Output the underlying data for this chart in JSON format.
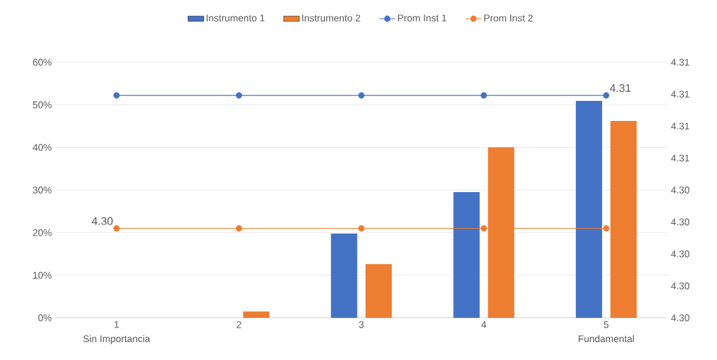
{
  "chart_data": {
    "type": "bar",
    "categories": [
      "1",
      "2",
      "3",
      "4",
      "5"
    ],
    "series": [
      {
        "name": "Instrumento 1",
        "color": "#4472c4",
        "values": [
          0,
          0,
          19.8,
          29.5,
          50.9
        ]
      },
      {
        "name": "Instrumento 2",
        "color": "#ed7d31",
        "values": [
          0,
          1.5,
          12.6,
          40,
          46.2
        ]
      },
      {
        "name": "Prom Inst 1",
        "type": "line",
        "axis": "y2",
        "marker": "circle",
        "color": "#4472c4",
        "values": [
          4.3087,
          4.3087,
          4.3087,
          4.3087,
          4.3087
        ],
        "value_labels": [
          null,
          null,
          null,
          null,
          "4.31"
        ]
      },
      {
        "name": "Prom Inst 2",
        "type": "line",
        "axis": "y2",
        "marker": "circle",
        "color": "#ed7d31",
        "values": [
          4.3035,
          4.3035,
          4.3035,
          4.3035,
          4.3035
        ],
        "value_labels": [
          "4.30",
          null,
          null,
          null,
          null
        ]
      }
    ],
    "ylim": [
      0,
      60
    ],
    "yticks": [
      {
        "value": 0,
        "label": "0%"
      },
      {
        "value": 10,
        "label": "10%"
      },
      {
        "value": 20,
        "label": "20%"
      },
      {
        "value": 30,
        "label": "30%"
      },
      {
        "value": 40,
        "label": "40%"
      },
      {
        "value": 50,
        "label": "50%"
      },
      {
        "value": 60,
        "label": "60%"
      }
    ],
    "y2lim": [
      4.3,
      4.31
    ],
    "y2ticks": [
      {
        "value": 4.3,
        "label": "4.30"
      },
      {
        "value": 4.30125,
        "label": "4.30"
      },
      {
        "value": 4.3025,
        "label": "4.30"
      },
      {
        "value": 4.30375,
        "label": "4.30"
      },
      {
        "value": 4.305,
        "label": "4.30"
      },
      {
        "value": 4.30625,
        "label": "4.31"
      },
      {
        "value": 4.3075,
        "label": "4.31"
      },
      {
        "value": 4.30875,
        "label": "4.31"
      },
      {
        "value": 4.31,
        "label": "4.31"
      }
    ],
    "grid": "y",
    "legend": "top",
    "annotations": [
      "Sin Importancia",
      "Fundamental"
    ]
  }
}
